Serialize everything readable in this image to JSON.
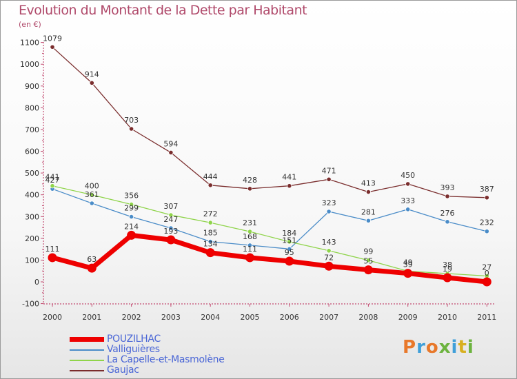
{
  "title": "Evolution du Montant de la Dette par Habitant",
  "subtitle": "(en €)",
  "logo": {
    "text": "Proxiti",
    "colors": [
      "#e8782a",
      "#3f9fd9",
      "#e8782a",
      "#6cb33e",
      "#3f9fd9",
      "#d8b020",
      "#6cb33e"
    ]
  },
  "chart_data": {
    "type": "line",
    "x": [
      "2000",
      "2001",
      "2002",
      "2003",
      "2004",
      "2005",
      "2006",
      "2007",
      "2008",
      "2009",
      "2010",
      "2011"
    ],
    "ylim": [
      -100,
      1100
    ],
    "yticks": [
      -100,
      0,
      100,
      200,
      300,
      400,
      500,
      600,
      700,
      800,
      900,
      1000,
      1100
    ],
    "grid": false,
    "legend_position": "bottom-left",
    "series": [
      {
        "name": "Gaujac",
        "color": "#7a2d2d",
        "values": [
          1079,
          914,
          703,
          594,
          444,
          428,
          441,
          471,
          413,
          450,
          393,
          387
        ],
        "labels": [
          "1079",
          "914",
          "703",
          "594",
          "444",
          "428",
          "441",
          "471",
          "413",
          "450",
          "393",
          "387"
        ]
      },
      {
        "name": "Valliguières",
        "color": "#4a8cc8",
        "values": [
          427,
          361,
          299,
          247,
          185,
          168,
          151,
          323,
          281,
          333,
          276,
          232
        ],
        "labels": [
          "427",
          "361",
          "299",
          "247",
          "185",
          "168",
          "151",
          "323",
          "281",
          "333",
          "276",
          "232"
        ]
      },
      {
        "name": "La Capelle-et-Masmolène",
        "color": "#8fd44a",
        "values": [
          441,
          400,
          356,
          307,
          272,
          231,
          184,
          143,
          99,
          49,
          38,
          27
        ],
        "labels": [
          "441",
          "400",
          "356",
          "307",
          "272",
          "231",
          "184",
          "143",
          "99",
          "49",
          "38",
          "27"
        ]
      },
      {
        "name": "POUZILHAC",
        "color": "#ee0000",
        "values": [
          111,
          63,
          214,
          193,
          134,
          111,
          95,
          72,
          55,
          39,
          19,
          0
        ],
        "labels": [
          "111",
          "63",
          "214",
          "193",
          "134",
          "111",
          "95",
          "72",
          "55",
          "39",
          "19",
          "0"
        ]
      }
    ],
    "legend": [
      "POUZILHAC",
      "Valliguières",
      "La Capelle-et-Masmolène",
      "Gaujac"
    ]
  }
}
